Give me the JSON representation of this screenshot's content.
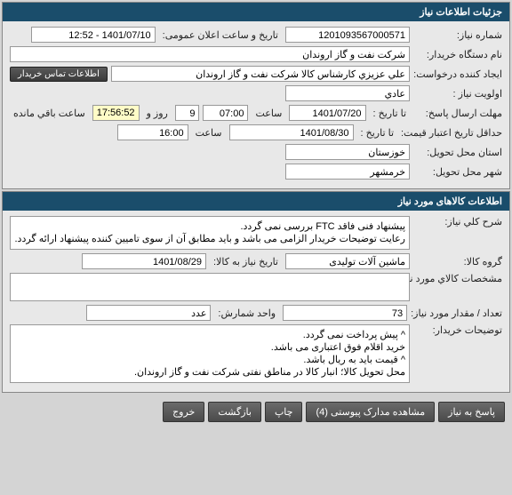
{
  "section1": {
    "title": "جزئیات اطلاعات نیاز",
    "need_number_label": "شماره نیاز:",
    "need_number": "1201093567000571",
    "announce_label": "تاریخ و ساعت اعلان عمومی:",
    "announce_value": "1401/07/10 - 12:52",
    "buyer_label": "نام دستگاه خریدار:",
    "buyer_value": "شرکت نفت و گاز اروندان",
    "requester_label": "ایجاد کننده درخواست:",
    "requester_value": "علي عزيزي كارشناس كالا شركت نفت و گاز اروندان",
    "contact_btn": "اطلاعات تماس خریدار",
    "priority_label": "اولویت نیاز :",
    "priority_value": "عادي",
    "reply_deadline_label": "مهلت ارسال پاسخ:",
    "until_label": "تا تاريخ :",
    "reply_date": "1401/07/20",
    "time_label": "ساعت",
    "reply_time": "07:00",
    "days_value": "9",
    "days_label": "روز و",
    "remaining_time": "17:56:52",
    "remaining_label": "ساعت باقي مانده",
    "price_validity_label": "حداقل تاریخ اعتبار قیمت:",
    "price_date": "1401/08/30",
    "price_time": "16:00",
    "province_label": "استان محل تحویل:",
    "province_value": "خوزستان",
    "city_label": "شهر محل تحویل:",
    "city_value": "خرمشهر"
  },
  "section2": {
    "title": "اطلاعات کالاهای مورد نیاز",
    "desc_label": "شرح كلي نیاز:",
    "desc_value": "پیشنهاد فنی فاقد FTC بررسی نمی گردد.\nرعایت توضیحات خریدار الزامی می باشد و باید مطابق آن از سوی تامیین کننده پیشنهاد ارائه گردد.",
    "group_label": "گروه کالا:",
    "group_value": "ماشین آلات تولیدی",
    "need_date_label": "تاریخ نیاز به کالا:",
    "need_date": "1401/08/29",
    "spec_label": "مشخصات کالاي مورد نیاز:",
    "spec_value": "",
    "qty_label": "تعداد / مقدار مورد نیاز:",
    "qty_value": "73",
    "unit_label": "واحد شمارش:",
    "unit_value": "عدد",
    "buyer_notes_label": "توضیحات خریدار:",
    "buyer_notes_value": "^ پیش پرداخت نمی گردد.\nخرید اقلام فوق اعتباری می باشد.\n^ قیمت باید به ریال باشد.\nمحل تحویل کالا؛ انبار کالا در مناطق نفتی شرکت نفت و گاز اروندان."
  },
  "buttons": {
    "reply": "پاسخ به نیاز",
    "attachments": "مشاهده مدارک پیوستی (4)",
    "print": "چاپ",
    "back": "بازگشت",
    "exit": "خروج"
  }
}
